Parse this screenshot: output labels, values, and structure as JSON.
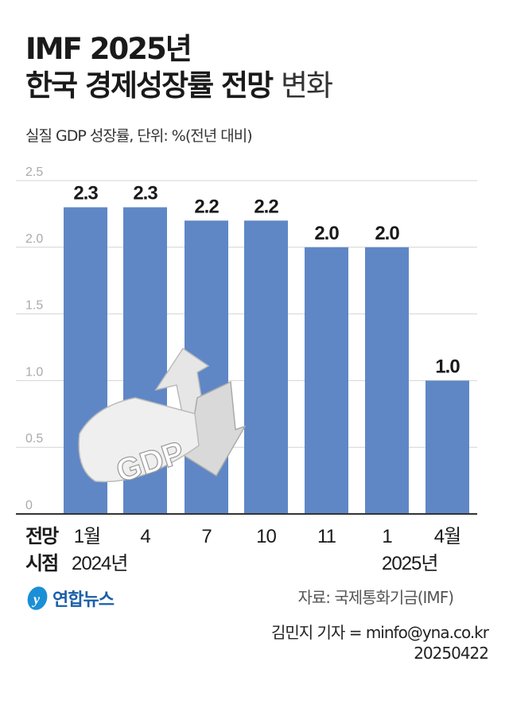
{
  "title_line1": "IMF 2025년",
  "title_line2_bold": "한국 경제성장률 전망",
  "title_line2_light": "변화",
  "subtitle": "실질 GDP 성장률, 단위: %(전년 대비)",
  "chart_data": {
    "type": "bar",
    "categories": [
      "1월",
      "4",
      "7",
      "10",
      "11",
      "1",
      "4월"
    ],
    "values": [
      2.3,
      2.3,
      2.2,
      2.2,
      2.0,
      2.0,
      1.0
    ],
    "data_labels": [
      "2.3",
      "2.3",
      "2.2",
      "2.2",
      "2.0",
      "2.0",
      "1.0"
    ],
    "year_labels": [
      "2024년",
      "",
      "",
      "",
      "",
      "2025년",
      ""
    ],
    "axis_title_line1": "전망",
    "axis_title_line2": "시점",
    "ylim": [
      0,
      2.5
    ],
    "yticks": [
      "0",
      "0.5",
      "1.0",
      "1.5",
      "2.0",
      "2.5"
    ],
    "grid": true,
    "bar_color": "#5f87c6"
  },
  "illustration_text": "GDP",
  "source": "자료: 국제통화기금(IMF)",
  "reporter": "김민지 기자 = minfo@yna.co.kr",
  "date": "20250422",
  "logo_text": "연합뉴스",
  "colors": {
    "bar": "#5f87c6",
    "grid": "#d4d4d4",
    "tick": "#aaaaaa",
    "logo": "#1b5fa8"
  }
}
